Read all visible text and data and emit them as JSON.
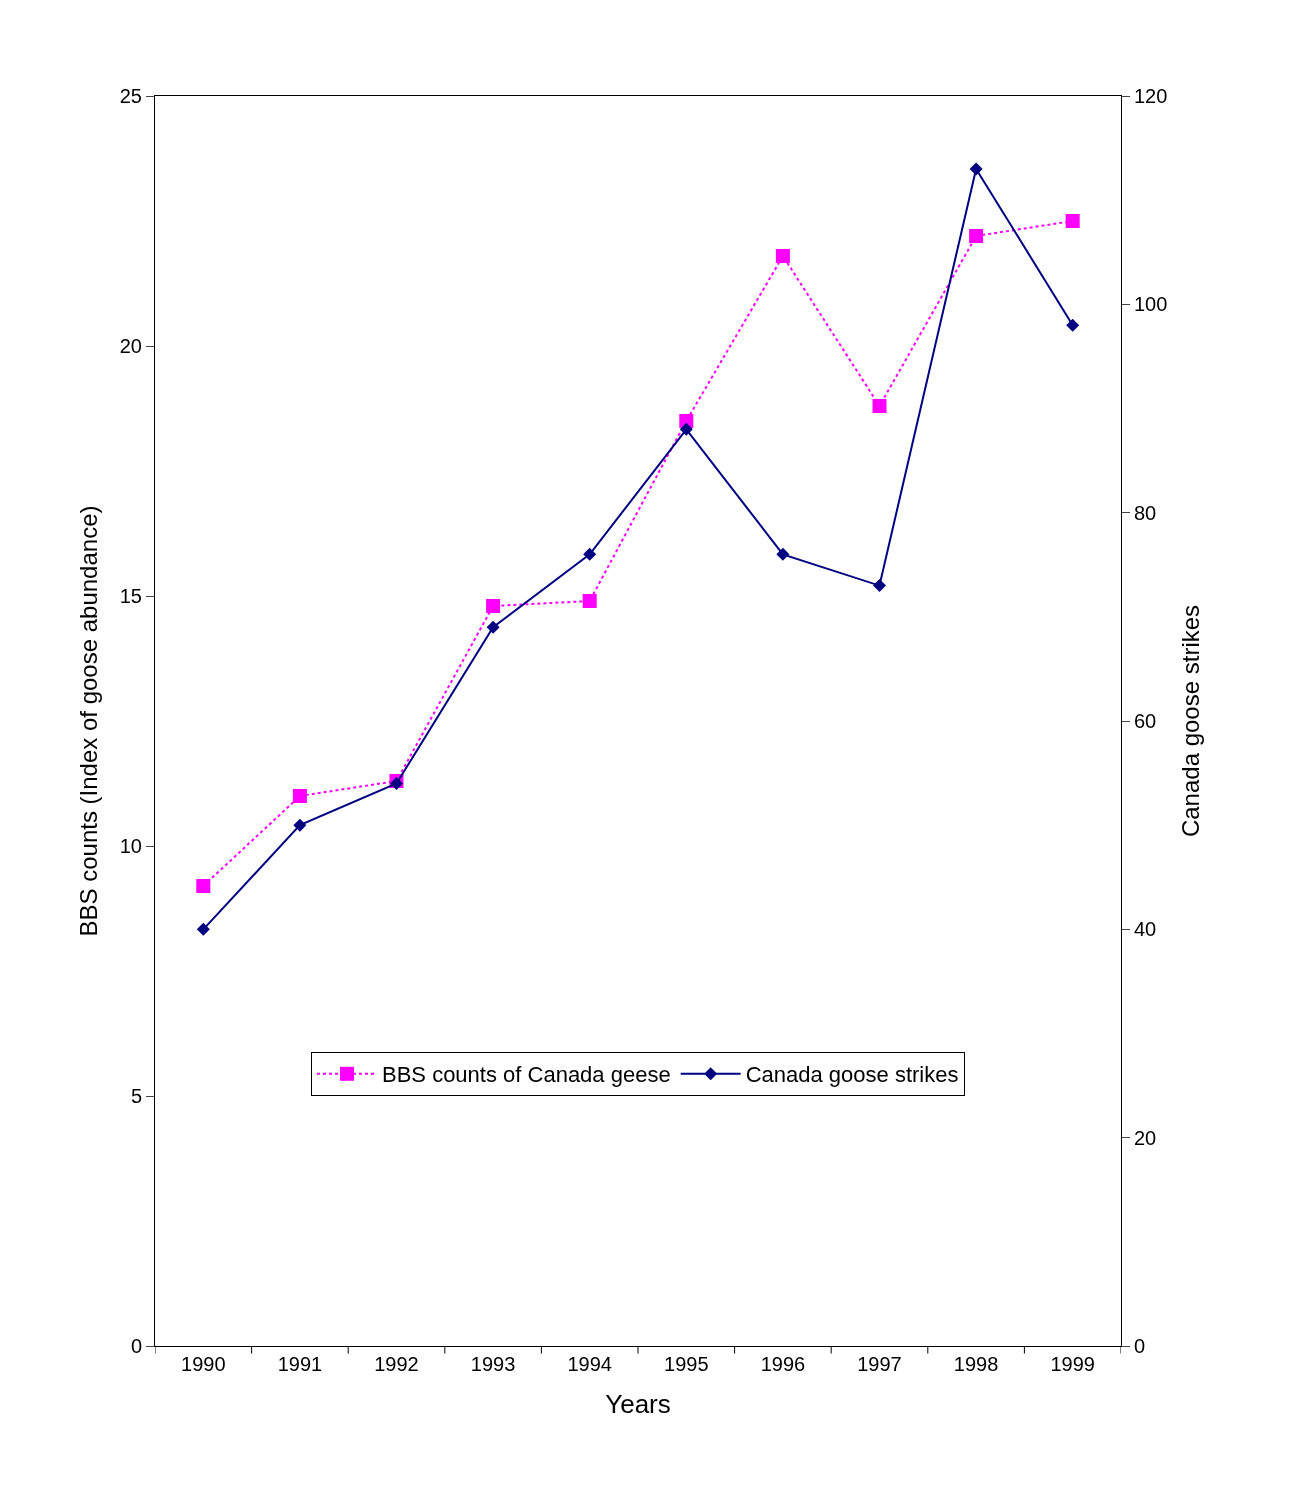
{
  "chart_data": {
    "type": "line",
    "xlabel": "Years",
    "ylabel": "BBS counts (Index of goose abundance)",
    "y2label": "Canada goose strikes",
    "categories": [
      "1990",
      "1991",
      "1992",
      "1993",
      "1994",
      "1995",
      "1996",
      "1997",
      "1998",
      "1999"
    ],
    "series": [
      {
        "name": "BBS counts of Canada geese",
        "color": "#ff00ff",
        "marker": "square",
        "line_style": "dotted",
        "values": [
          9.2,
          11.0,
          11.3,
          14.8,
          14.9,
          18.5,
          21.8,
          18.8,
          22.2,
          22.5
        ]
      },
      {
        "name": "Canada goose strikes",
        "color": "#000080",
        "marker": "diamond",
        "line_style": "solid",
        "axis": "y2",
        "values": [
          40,
          50,
          54,
          69,
          76,
          88,
          76,
          73,
          113,
          98
        ]
      }
    ],
    "ylim": [
      0,
      25
    ],
    "yticks": [
      0,
      5,
      10,
      15,
      20,
      25
    ],
    "y2lim": [
      0,
      120
    ],
    "y2ticks": [
      0,
      20,
      40,
      60,
      80,
      100,
      120
    ],
    "legend": "bottom"
  }
}
